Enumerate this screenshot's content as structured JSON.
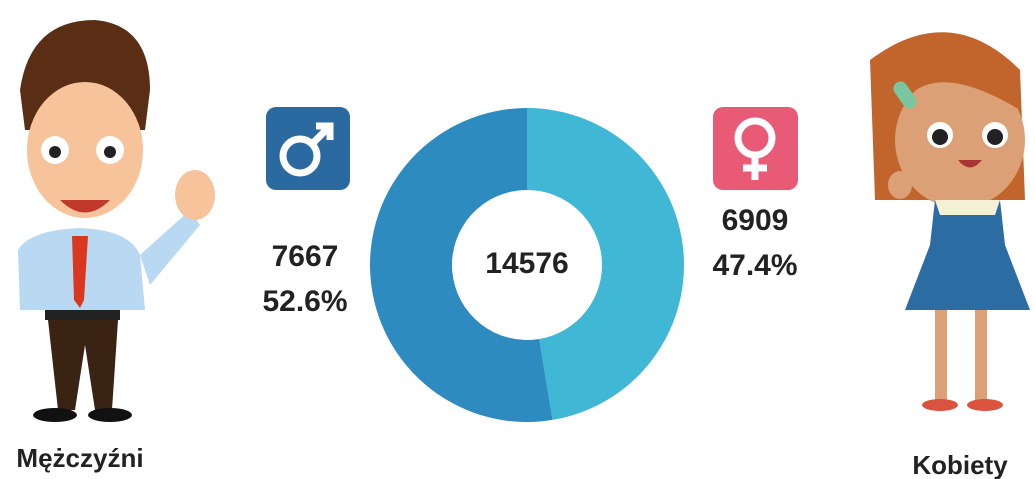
{
  "chart_data": {
    "type": "pie",
    "donut": true,
    "categories": [
      "Mężczyźni",
      "Kobiety"
    ],
    "values": [
      7667,
      6909
    ],
    "colors": [
      "#2e8bc0",
      "#41b7d6"
    ],
    "shares": {
      "values": [
        52.6,
        47.4
      ],
      "value_labels": [
        "52.6%",
        "47.4%"
      ]
    },
    "total": "14576"
  }
}
